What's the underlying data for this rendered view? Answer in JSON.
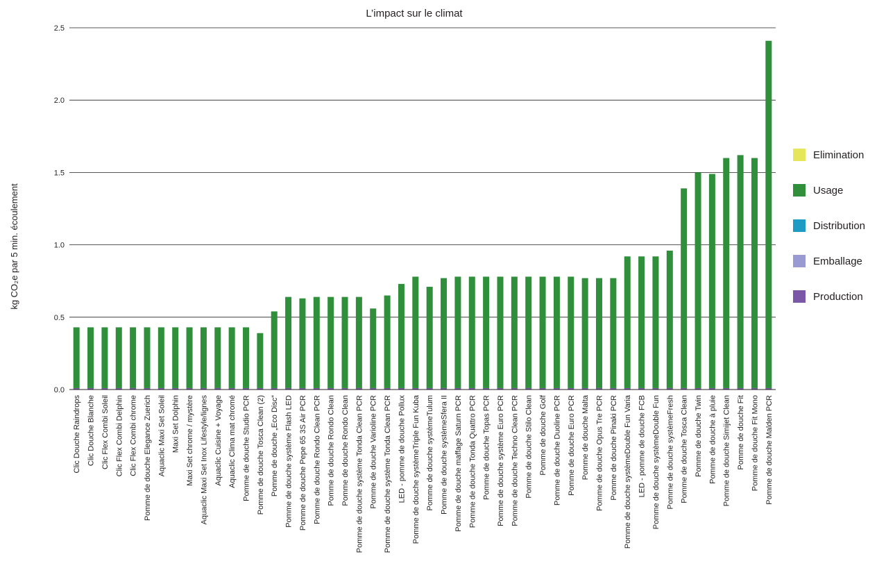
{
  "chart_data": {
    "type": "bar",
    "title": "L’impact sur le climat",
    "ylabel": "kg CO₂e  par 5 min. écoulement",
    "ylim": [
      0,
      2.5
    ],
    "yticks": [
      "0.0",
      "0.5",
      "1.0",
      "1.5",
      "2.0",
      "2.5"
    ],
    "grid": true,
    "stacked": true,
    "legend_position": "right",
    "categories": [
      "Clic Douche Raindrops",
      "Clic Douche Blanche",
      "Clic Flex Combi Soleil",
      "Clic Flex Combi Delphin",
      "Clic Flex Combi chrome",
      "Pomme de douche Elegance Zuerich",
      "Aquaclic Maxi Set Soleil",
      "Maxi Set Dolphin",
      "Maxi Set chrome / mystère",
      "Aquaclic Maxi Set Inox Lifestyle/lignes",
      "Aquaclic Cuisine + Voyage",
      "Aquaclic Clima mat chromé",
      "Pomme de douche Studio PCR",
      "Pomme de douche Tosca Clean (2)",
      "Pomme de douche „Eco Disc“",
      "Pomme de douche système Flash LED",
      "Pomme de douche Pepe 65 3S Air PCR",
      "Pomme de douche Rondo Clean PCR",
      "Pomme de douche Rondo Clean",
      "Pomme de douche Rondo Clean",
      "Pomme de douche système Tonda Clean PCR",
      "Pomme de douche Varioline PCR",
      "Pomme de douche système Tonda Clean PCR",
      "LED - pomme de douche Pollux",
      "Pomme de douche systèmeTriple Fun Kuba",
      "Pomme de douche systèmeTulum",
      "Pomme de douche systèmeSfera II",
      "Pomme de douche maffage Saturn PCR",
      "Pomme de douche Tonda Quattro PCR",
      "Pomme de douche Topas PCR",
      "Pomme de douche système Euro PCR",
      "Pomme de douche Techno Clean PCR",
      "Pomme de douche Stilo Clean",
      "Pomme de douche Golf",
      "Pomme de douche Duoline PCR",
      "Pomme de douche Euro PCR",
      "Pomme de douche Malta",
      "Pomme de douche Opus Tre PCR",
      "Pomme de douche Pinaki PCR",
      "Pomme de douche systèmeDouble Fun Varia",
      "LED - pomme de douche FCB",
      "Pomme de douche systèmeDouble Fun",
      "Pomme de douche systèmeFresh",
      "Pomme de douche Tosca Clean",
      "Pomme de douche Twin",
      "Pomme de douche à pluie",
      "Pomme de douche Simijet Clean",
      "Pomme de douche Fit",
      "Pomme de douche Fit Mono",
      "Pomme de douche Malden PCR"
    ],
    "series": [
      {
        "name": "Elimination",
        "color": "#e6e65c",
        "values": [
          0,
          0,
          0,
          0,
          0,
          0,
          0,
          0,
          0,
          0,
          0,
          0,
          0,
          0,
          0,
          0,
          0,
          0,
          0,
          0,
          0,
          0,
          0,
          0,
          0,
          0,
          0,
          0,
          0,
          0,
          0,
          0,
          0,
          0,
          0,
          0,
          0,
          0,
          0,
          0,
          0,
          0,
          0,
          0,
          0,
          0,
          0,
          0,
          0,
          0
        ]
      },
      {
        "name": "Usage",
        "color": "#2f8f3a",
        "values": [
          0.42,
          0.42,
          0.42,
          0.42,
          0.42,
          0.42,
          0.42,
          0.42,
          0.42,
          0.42,
          0.42,
          0.42,
          0.42,
          0.38,
          0.53,
          0.63,
          0.62,
          0.63,
          0.63,
          0.63,
          0.63,
          0.55,
          0.64,
          0.72,
          0.77,
          0.7,
          0.76,
          0.77,
          0.77,
          0.77,
          0.77,
          0.77,
          0.77,
          0.77,
          0.77,
          0.77,
          0.76,
          0.76,
          0.76,
          0.91,
          0.91,
          0.91,
          0.95,
          1.38,
          1.49,
          1.48,
          1.59,
          1.61,
          1.59,
          2.4
        ]
      },
      {
        "name": "Distribution",
        "color": "#1e9bc4",
        "values": [
          0,
          0,
          0,
          0,
          0,
          0,
          0,
          0,
          0,
          0,
          0,
          0,
          0,
          0,
          0,
          0,
          0,
          0,
          0,
          0,
          0,
          0,
          0,
          0,
          0,
          0,
          0,
          0,
          0,
          0,
          0,
          0,
          0,
          0,
          0,
          0,
          0,
          0,
          0,
          0,
          0,
          0,
          0,
          0,
          0,
          0,
          0,
          0,
          0,
          0
        ]
      },
      {
        "name": "Emballage",
        "color": "#9a9ad2",
        "values": [
          0,
          0,
          0,
          0,
          0,
          0,
          0,
          0,
          0,
          0,
          0,
          0,
          0,
          0,
          0,
          0,
          0,
          0,
          0,
          0,
          0,
          0,
          0,
          0,
          0,
          0,
          0,
          0,
          0,
          0,
          0,
          0,
          0,
          0,
          0,
          0,
          0,
          0,
          0,
          0,
          0,
          0,
          0,
          0,
          0,
          0,
          0,
          0,
          0,
          0
        ]
      },
      {
        "name": "Production",
        "color": "#7b57a8",
        "values": [
          0.01,
          0.01,
          0.01,
          0.01,
          0.01,
          0.01,
          0.01,
          0.01,
          0.01,
          0.01,
          0.01,
          0.01,
          0.01,
          0.01,
          0.01,
          0.01,
          0.01,
          0.01,
          0.01,
          0.01,
          0.01,
          0.01,
          0.01,
          0.01,
          0.01,
          0.01,
          0.01,
          0.01,
          0.01,
          0.01,
          0.01,
          0.01,
          0.01,
          0.01,
          0.01,
          0.01,
          0.01,
          0.01,
          0.01,
          0.01,
          0.01,
          0.01,
          0.01,
          0.01,
          0.01,
          0.01,
          0.01,
          0.01,
          0.01,
          0.01
        ]
      }
    ],
    "legend_order": [
      "Elimination",
      "Usage",
      "Distribution",
      "Emballage",
      "Production"
    ],
    "stack_order": [
      "Production",
      "Emballage",
      "Distribution",
      "Usage",
      "Elimination"
    ]
  }
}
